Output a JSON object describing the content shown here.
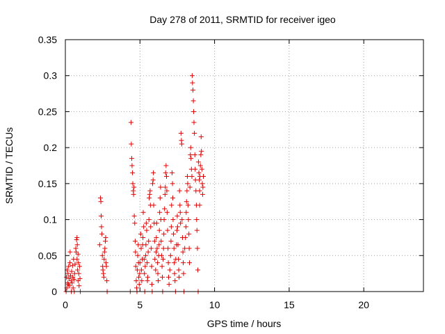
{
  "chart_data": {
    "type": "scatter",
    "title": "Day 278 of 2011, SRMTID for receiver igeo",
    "xlabel": "GPS time / hours",
    "ylabel": "SRMTID / TECUs",
    "xlim": [
      0,
      24
    ],
    "ylim": [
      0,
      0.35
    ],
    "xticks": [
      0,
      5,
      10,
      15,
      20
    ],
    "xtick_labels": [
      "0",
      "5",
      "10",
      "15",
      "20"
    ],
    "yticks": [
      0,
      0.05,
      0.1,
      0.15,
      0.2,
      0.25,
      0.3,
      0.35
    ],
    "ytick_labels": [
      "0",
      "0.05",
      "0.1",
      "0.15",
      "0.2",
      "0.25",
      "0.3",
      "0.35"
    ],
    "grid": true,
    "marker": "+",
    "color": "#e00000",
    "series": [
      {
        "name": "SRMTID",
        "points": [
          [
            0.05,
            0.0
          ],
          [
            0.08,
            0.02
          ],
          [
            0.1,
            0.005
          ],
          [
            0.12,
            0.03
          ],
          [
            0.15,
            0.012
          ],
          [
            0.18,
            0.025
          ],
          [
            0.2,
            0.01
          ],
          [
            0.22,
            0.035
          ],
          [
            0.25,
            0.018
          ],
          [
            0.28,
            0.008
          ],
          [
            0.3,
            0.04
          ],
          [
            0.32,
            0.055
          ],
          [
            0.35,
            0.022
          ],
          [
            0.38,
            0.015
          ],
          [
            0.4,
            0.0
          ],
          [
            0.42,
            0.028
          ],
          [
            0.45,
            0.012
          ],
          [
            0.48,
            0.036
          ],
          [
            0.5,
            0.02
          ],
          [
            0.52,
            0.005
          ],
          [
            0.55,
            0.045
          ],
          [
            0.58,
            0.017
          ],
          [
            0.6,
            0.0
          ],
          [
            0.62,
            0.025
          ],
          [
            0.65,
            0.038
          ],
          [
            0.7,
            0.06
          ],
          [
            0.72,
            0.055
          ],
          [
            0.75,
            0.072
          ],
          [
            0.78,
            0.045
          ],
          [
            0.8,
            0.065
          ],
          [
            0.82,
            0.03
          ],
          [
            0.85,
            0.015
          ],
          [
            0.88,
            0.04
          ],
          [
            0.9,
            0.025
          ],
          [
            0.92,
            0.008
          ],
          [
            0.95,
            0.035
          ],
          [
            0.98,
            0.018
          ],
          [
            1.0,
            0.0
          ],
          [
            0.85,
            0.052
          ],
          [
            0.78,
            0.075
          ],
          [
            2.3,
            0.065
          ],
          [
            2.35,
            0.13
          ],
          [
            2.38,
            0.125
          ],
          [
            2.4,
            0.105
          ],
          [
            2.42,
            0.09
          ],
          [
            2.45,
            0.08
          ],
          [
            2.48,
            0.05
          ],
          [
            2.5,
            0.035
          ],
          [
            2.52,
            0.03
          ],
          [
            2.55,
            0.025
          ],
          [
            2.58,
            0.02
          ],
          [
            2.6,
            0.045
          ],
          [
            2.62,
            0.055
          ],
          [
            2.65,
            0.06
          ],
          [
            2.68,
            0.07
          ],
          [
            2.7,
            0.075
          ],
          [
            2.72,
            0.04
          ],
          [
            2.75,
            0.035
          ],
          [
            2.78,
            0.015
          ],
          [
            2.8,
            0.0
          ],
          [
            4.35,
            0.0
          ],
          [
            4.4,
            0.235
          ],
          [
            4.42,
            0.205
          ],
          [
            4.45,
            0.185
          ],
          [
            4.47,
            0.175
          ],
          [
            4.5,
            0.165
          ],
          [
            4.52,
            0.15
          ],
          [
            4.55,
            0.14
          ],
          [
            4.57,
            0.135
          ],
          [
            4.6,
            0.145
          ],
          [
            4.62,
            0.105
          ],
          [
            4.65,
            0.095
          ],
          [
            4.68,
            0.07
          ],
          [
            4.7,
            0.055
          ],
          [
            4.72,
            0.035
          ],
          [
            4.75,
            0.015
          ],
          [
            4.78,
            0.005
          ],
          [
            4.8,
            0.0
          ],
          [
            4.82,
            0.03
          ],
          [
            4.85,
            0.05
          ],
          [
            4.88,
            0.065
          ],
          [
            4.9,
            0.04
          ],
          [
            4.92,
            0.02
          ],
          [
            4.95,
            0.01
          ],
          [
            4.98,
            0.025
          ],
          [
            5.0,
            0.04
          ],
          [
            5.05,
            0.08
          ],
          [
            5.08,
            0.06
          ],
          [
            5.1,
            0.03
          ],
          [
            5.12,
            0.015
          ],
          [
            5.15,
            0.045
          ],
          [
            5.18,
            0.065
          ],
          [
            5.2,
            0.075
          ],
          [
            5.22,
            0.11
          ],
          [
            5.25,
            0.09
          ],
          [
            5.28,
            0.045
          ],
          [
            5.3,
            0.025
          ],
          [
            5.32,
            0.0
          ],
          [
            5.35,
            0.035
          ],
          [
            5.38,
            0.05
          ],
          [
            5.4,
            0.065
          ],
          [
            5.42,
            0.095
          ],
          [
            5.45,
            0.085
          ],
          [
            5.48,
            0.04
          ],
          [
            5.5,
            0.015
          ],
          [
            5.52,
            0.02
          ],
          [
            5.55,
            0.055
          ],
          [
            5.58,
            0.07
          ],
          [
            5.6,
            0.1
          ],
          [
            5.62,
            0.13
          ],
          [
            5.65,
            0.135
          ],
          [
            5.68,
            0.14
          ],
          [
            5.7,
            0.12
          ],
          [
            5.72,
            0.09
          ],
          [
            5.75,
            0.06
          ],
          [
            5.78,
            0.035
          ],
          [
            5.8,
            0.01
          ],
          [
            5.82,
            0.0
          ],
          [
            5.85,
            0.15
          ],
          [
            5.88,
            0.155
          ],
          [
            5.9,
            0.165
          ],
          [
            5.92,
            0.12
          ],
          [
            5.95,
            0.095
          ],
          [
            5.98,
            0.07
          ],
          [
            6.0,
            0.045
          ],
          [
            6.05,
            0.03
          ],
          [
            6.08,
            0.055
          ],
          [
            6.1,
            0.075
          ],
          [
            6.12,
            0.095
          ],
          [
            6.15,
            0.06
          ],
          [
            6.18,
            0.04
          ],
          [
            6.2,
            0.025
          ],
          [
            6.22,
            0.015
          ],
          [
            6.25,
            0.05
          ],
          [
            6.28,
            0.065
          ],
          [
            6.3,
            0.085
          ],
          [
            6.32,
            0.11
          ],
          [
            6.35,
            0.13
          ],
          [
            6.38,
            0.145
          ],
          [
            6.4,
            0.1
          ],
          [
            6.42,
            0.07
          ],
          [
            6.45,
            0.05
          ],
          [
            6.48,
            0.035
          ],
          [
            6.5,
            0.02
          ],
          [
            6.52,
            0.0
          ],
          [
            6.55,
            0.045
          ],
          [
            6.58,
            0.06
          ],
          [
            6.6,
            0.08
          ],
          [
            6.62,
            0.1
          ],
          [
            6.65,
            0.115
          ],
          [
            6.68,
            0.135
          ],
          [
            6.7,
            0.145
          ],
          [
            6.72,
            0.165
          ],
          [
            6.75,
            0.175
          ],
          [
            6.78,
            0.16
          ],
          [
            6.8,
            0.14
          ],
          [
            6.82,
            0.11
          ],
          [
            6.85,
            0.085
          ],
          [
            6.88,
            0.06
          ],
          [
            6.9,
            0.04
          ],
          [
            6.92,
            0.02
          ],
          [
            6.95,
            0.01
          ],
          [
            7.0,
            0.03
          ],
          [
            7.05,
            0.05
          ],
          [
            7.08,
            0.07
          ],
          [
            7.1,
            0.09
          ],
          [
            7.12,
            0.12
          ],
          [
            7.15,
            0.165
          ],
          [
            7.18,
            0.15
          ],
          [
            7.2,
            0.13
          ],
          [
            7.22,
            0.1
          ],
          [
            7.25,
            0.08
          ],
          [
            7.28,
            0.06
          ],
          [
            7.3,
            0.04
          ],
          [
            7.32,
            0.025
          ],
          [
            7.35,
            0.015
          ],
          [
            7.38,
            0.0
          ],
          [
            7.4,
            0.045
          ],
          [
            7.45,
            0.065
          ],
          [
            7.48,
            0.085
          ],
          [
            7.5,
            0.105
          ],
          [
            7.52,
            0.09
          ],
          [
            7.55,
            0.065
          ],
          [
            7.58,
            0.045
          ],
          [
            7.6,
            0.03
          ],
          [
            7.62,
            0.02
          ],
          [
            7.65,
            0.14
          ],
          [
            7.68,
            0.12
          ],
          [
            7.7,
            0.11
          ],
          [
            7.72,
            0.095
          ],
          [
            7.75,
            0.22
          ],
          [
            7.78,
            0.21
          ],
          [
            7.8,
            0.205
          ],
          [
            7.82,
            0.1
          ],
          [
            7.85,
            0.075
          ],
          [
            7.88,
            0.055
          ],
          [
            7.9,
            0.04
          ],
          [
            7.92,
            0.025
          ],
          [
            7.95,
            0.0
          ],
          [
            8.0,
            0.06
          ],
          [
            8.05,
            0.075
          ],
          [
            8.08,
            0.09
          ],
          [
            8.1,
            0.11
          ],
          [
            8.12,
            0.125
          ],
          [
            8.15,
            0.14
          ],
          [
            8.18,
            0.16
          ],
          [
            8.2,
            0.15
          ],
          [
            8.22,
            0.12
          ],
          [
            8.25,
            0.1
          ],
          [
            8.28,
            0.08
          ],
          [
            8.3,
            0.06
          ],
          [
            8.32,
            0.04
          ],
          [
            8.35,
            0.145
          ],
          [
            8.38,
            0.19
          ],
          [
            8.4,
            0.2
          ],
          [
            8.42,
            0.185
          ],
          [
            8.45,
            0.17
          ],
          [
            8.48,
            0.16
          ],
          [
            8.5,
            0.3
          ],
          [
            8.52,
            0.29
          ],
          [
            8.55,
            0.28
          ],
          [
            8.58,
            0.265
          ],
          [
            8.6,
            0.25
          ],
          [
            8.62,
            0.235
          ],
          [
            8.65,
            0.22
          ],
          [
            8.68,
            0.19
          ],
          [
            8.7,
            0.17
          ],
          [
            8.72,
            0.155
          ],
          [
            8.75,
            0.14
          ],
          [
            8.78,
            0.12
          ],
          [
            8.8,
            0.1
          ],
          [
            8.82,
            0.085
          ],
          [
            8.85,
            0.06
          ],
          [
            8.88,
            0.03
          ],
          [
            8.9,
            0.0
          ],
          [
            8.92,
            0.18
          ],
          [
            8.95,
            0.165
          ],
          [
            8.98,
            0.155
          ],
          [
            9.0,
            0.14
          ],
          [
            9.02,
            0.16
          ],
          [
            9.05,
            0.175
          ],
          [
            9.08,
            0.19
          ],
          [
            9.1,
            0.215
          ],
          [
            9.12,
            0.195
          ],
          [
            9.15,
            0.17
          ],
          [
            9.18,
            0.15
          ],
          [
            9.2,
            0.135
          ],
          [
            9.22,
            0.145
          ],
          [
            9.25,
            0.16
          ],
          [
            9.0,
            0.12
          ]
        ]
      }
    ]
  }
}
